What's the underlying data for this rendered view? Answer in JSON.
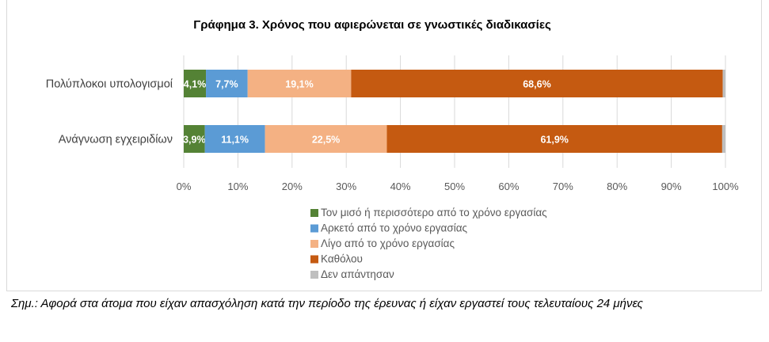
{
  "chart_data": {
    "type": "bar",
    "orientation": "horizontal",
    "stacked": "percent",
    "title": "Γράφημα 3. Χρόνος  που αφιερώνεται  σε γνωστικές διαδικασίες",
    "categories": [
      "Πολύπλοκοι υπολογισμοί",
      "Ανάγνωση εγχειριδίων"
    ],
    "series": [
      {
        "name": "Τον μισό ή περισσότερο από το χρόνο εργασίας",
        "color": "#548235",
        "values": [
          4.1,
          3.9
        ],
        "labels": [
          "4,1%",
          "3,9%"
        ]
      },
      {
        "name": "Αρκετό από το χρόνο εργασίας",
        "color": "#5b9bd5",
        "values": [
          7.7,
          11.1
        ],
        "labels": [
          "7,7%",
          "11,1%"
        ]
      },
      {
        "name": "Λίγο από το χρόνο εργασίας",
        "color": "#f4b183",
        "values": [
          19.1,
          22.5
        ],
        "labels": [
          "19,1%",
          "22,5%"
        ]
      },
      {
        "name": "Καθόλου",
        "color": "#c55a11",
        "values": [
          68.6,
          61.9
        ],
        "labels": [
          "68,6%",
          "61,9%"
        ]
      },
      {
        "name": "Δεν απάντησαν",
        "color": "#bfbfbf",
        "values": [
          0.5,
          0.6
        ],
        "labels": [
          "",
          ""
        ]
      }
    ],
    "xticks": [
      "0%",
      "10%",
      "20%",
      "30%",
      "40%",
      "50%",
      "60%",
      "70%",
      "80%",
      "90%",
      "100%"
    ],
    "xlim": [
      0,
      100
    ],
    "grid": true,
    "legend": "bottom"
  },
  "note": "Σημ.: Αφορά στα άτομα που είχαν απασχόληση κατά την περίοδο της έρευνας ή είχαν εργαστεί τους τελευταίους 24 μήνες"
}
